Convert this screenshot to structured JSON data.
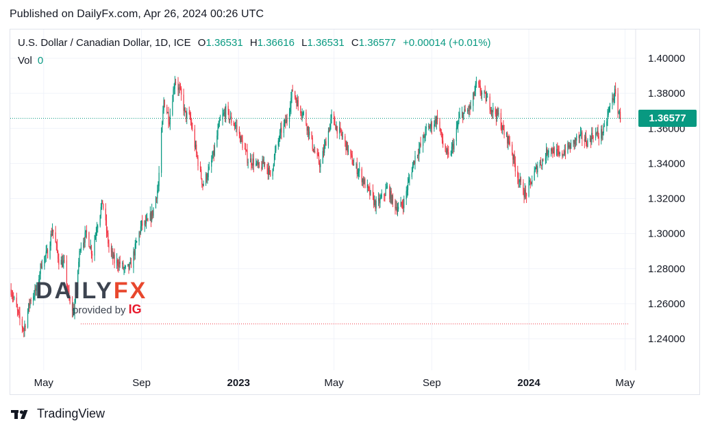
{
  "header": {
    "published": "Published on DailyFx.com, Apr 26, 2024 00:26 UTC"
  },
  "legend": {
    "symbol": "U.S. Dollar / Canadian Dollar, 1D, ICE",
    "open_label": "O",
    "open": "1.36531",
    "high_label": "H",
    "high": "1.36616",
    "low_label": "L",
    "low": "1.36531",
    "close_label": "C",
    "close": "1.36577",
    "change": "+0.00014 (+0.01%)",
    "vol_label": "Vol",
    "vol": "0"
  },
  "price_tag": "1.36577",
  "watermark": {
    "logo_left": "DAILY",
    "logo_right": "FX",
    "provided_by": "provided by",
    "ig": "IG"
  },
  "footer": {
    "brand": "TradingView"
  },
  "colors": {
    "up": "#089981",
    "down": "#f23645",
    "grid": "#f0f3fa",
    "text": "#131722",
    "accent": "#089981"
  },
  "chart_data": {
    "type": "candlestick",
    "title": "U.S. Dollar / Canadian Dollar, 1D, ICE",
    "y_ticks": [
      "1.40000",
      "1.38000",
      "1.36000",
      "1.34000",
      "1.32000",
      "1.30000",
      "1.28000",
      "1.26000",
      "1.24000"
    ],
    "ylim": [
      1.2335,
      1.4035
    ],
    "x_ticks": [
      {
        "label": "May",
        "date": "2022-05-01",
        "bold": false
      },
      {
        "label": "Sep",
        "date": "2022-09-01",
        "bold": false
      },
      {
        "label": "2023",
        "date": "2023-01-01",
        "bold": true
      },
      {
        "label": "May",
        "date": "2023-05-01",
        "bold": false
      },
      {
        "label": "Sep",
        "date": "2023-09-01",
        "bold": false
      },
      {
        "label": "2024",
        "date": "2024-01-01",
        "bold": true
      },
      {
        "label": "May",
        "date": "2024-05-01",
        "bold": false
      }
    ],
    "x_range": [
      "2022-03-20",
      "2024-05-10"
    ],
    "current_price": 1.36577,
    "support_level": 1.2485,
    "grid": true,
    "price_path": [
      [
        "2022-03-21",
        1.268
      ],
      [
        "2022-03-31",
        1.252
      ],
      [
        "2022-04-06",
        1.245
      ],
      [
        "2022-04-14",
        1.262
      ],
      [
        "2022-04-22",
        1.268
      ],
      [
        "2022-04-28",
        1.283
      ],
      [
        "2022-05-06",
        1.289
      ],
      [
        "2022-05-12",
        1.303
      ],
      [
        "2022-05-20",
        1.285
      ],
      [
        "2022-05-27",
        1.282
      ],
      [
        "2022-06-03",
        1.259
      ],
      [
        "2022-06-08",
        1.256
      ],
      [
        "2022-06-16",
        1.293
      ],
      [
        "2022-06-24",
        1.3
      ],
      [
        "2022-07-01",
        1.289
      ],
      [
        "2022-07-07",
        1.305
      ],
      [
        "2022-07-14",
        1.318
      ],
      [
        "2022-07-22",
        1.292
      ],
      [
        "2022-07-29",
        1.284
      ],
      [
        "2022-08-05",
        1.283
      ],
      [
        "2022-08-11",
        1.279
      ],
      [
        "2022-08-18",
        1.281
      ],
      [
        "2022-08-26",
        1.295
      ],
      [
        "2022-09-01",
        1.305
      ],
      [
        "2022-09-09",
        1.306
      ],
      [
        "2022-09-15",
        1.312
      ],
      [
        "2022-09-22",
        1.327
      ],
      [
        "2022-09-29",
        1.376
      ],
      [
        "2022-10-06",
        1.365
      ],
      [
        "2022-10-13",
        1.388
      ],
      [
        "2022-10-20",
        1.38
      ],
      [
        "2022-10-26",
        1.368
      ],
      [
        "2022-11-01",
        1.366
      ],
      [
        "2022-11-10",
        1.343
      ],
      [
        "2022-11-17",
        1.328
      ],
      [
        "2022-11-25",
        1.336
      ],
      [
        "2022-12-01",
        1.346
      ],
      [
        "2022-12-08",
        1.363
      ],
      [
        "2022-12-16",
        1.37
      ],
      [
        "2022-12-22",
        1.365
      ],
      [
        "2022-12-29",
        1.361
      ],
      [
        "2023-01-06",
        1.351
      ],
      [
        "2023-01-13",
        1.342
      ],
      [
        "2023-01-20",
        1.341
      ],
      [
        "2023-01-27",
        1.337
      ],
      [
        "2023-02-03",
        1.341
      ],
      [
        "2023-02-10",
        1.333
      ],
      [
        "2023-02-17",
        1.348
      ],
      [
        "2023-02-24",
        1.359
      ],
      [
        "2023-03-03",
        1.365
      ],
      [
        "2023-03-10",
        1.382
      ],
      [
        "2023-03-17",
        1.373
      ],
      [
        "2023-03-24",
        1.368
      ],
      [
        "2023-03-31",
        1.357
      ],
      [
        "2023-04-06",
        1.347
      ],
      [
        "2023-04-14",
        1.339
      ],
      [
        "2023-04-21",
        1.353
      ],
      [
        "2023-04-28",
        1.366
      ],
      [
        "2023-05-05",
        1.36
      ],
      [
        "2023-05-12",
        1.355
      ],
      [
        "2023-05-19",
        1.347
      ],
      [
        "2023-05-26",
        1.339
      ],
      [
        "2023-06-02",
        1.335
      ],
      [
        "2023-06-09",
        1.328
      ],
      [
        "2023-06-16",
        1.322
      ],
      [
        "2023-06-23",
        1.316
      ],
      [
        "2023-06-30",
        1.32
      ],
      [
        "2023-07-07",
        1.326
      ],
      [
        "2023-07-14",
        1.318
      ],
      [
        "2023-07-21",
        1.314
      ],
      [
        "2023-07-28",
        1.318
      ],
      [
        "2023-08-04",
        1.332
      ],
      [
        "2023-08-11",
        1.344
      ],
      [
        "2023-08-18",
        1.35
      ],
      [
        "2023-08-25",
        1.359
      ],
      [
        "2023-09-01",
        1.362
      ],
      [
        "2023-09-08",
        1.366
      ],
      [
        "2023-09-15",
        1.351
      ],
      [
        "2023-09-22",
        1.343
      ],
      [
        "2023-09-29",
        1.352
      ],
      [
        "2023-10-06",
        1.367
      ],
      [
        "2023-10-13",
        1.369
      ],
      [
        "2023-10-20",
        1.372
      ],
      [
        "2023-10-27",
        1.385
      ],
      [
        "2023-11-03",
        1.38
      ],
      [
        "2023-11-10",
        1.376
      ],
      [
        "2023-11-17",
        1.37
      ],
      [
        "2023-11-24",
        1.367
      ],
      [
        "2023-11-30",
        1.358
      ],
      [
        "2023-12-08",
        1.352
      ],
      [
        "2023-12-15",
        1.338
      ],
      [
        "2023-12-22",
        1.327
      ],
      [
        "2023-12-28",
        1.322
      ],
      [
        "2024-01-05",
        1.331
      ],
      [
        "2024-01-12",
        1.339
      ],
      [
        "2024-01-19",
        1.342
      ],
      [
        "2024-01-26",
        1.349
      ],
      [
        "2024-02-02",
        1.347
      ],
      [
        "2024-02-09",
        1.344
      ],
      [
        "2024-02-16",
        1.348
      ],
      [
        "2024-02-23",
        1.35
      ],
      [
        "2024-03-01",
        1.354
      ],
      [
        "2024-03-08",
        1.355
      ],
      [
        "2024-03-15",
        1.352
      ],
      [
        "2024-03-22",
        1.357
      ],
      [
        "2024-03-29",
        1.356
      ],
      [
        "2024-04-05",
        1.359
      ],
      [
        "2024-04-12",
        1.373
      ],
      [
        "2024-04-18",
        1.38
      ],
      [
        "2024-04-22",
        1.371
      ],
      [
        "2024-04-25",
        1.36577
      ]
    ]
  }
}
